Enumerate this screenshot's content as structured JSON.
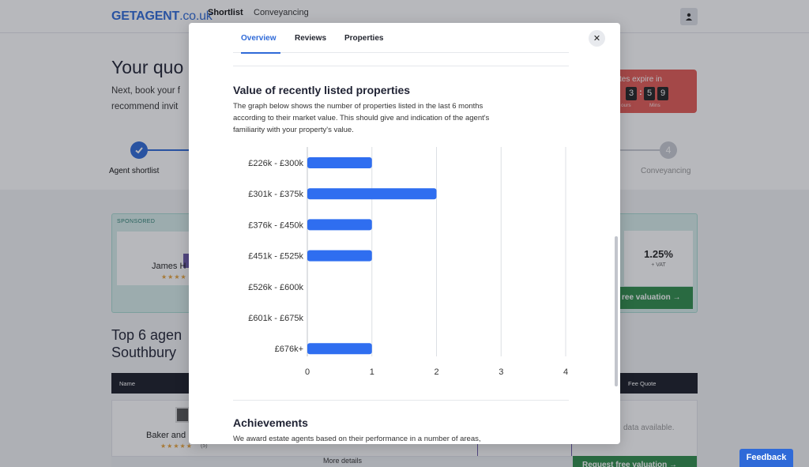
{
  "header": {
    "logo_bold": "GETAGENT",
    "logo_rest": ".co.uk",
    "nav": [
      "Shortlist",
      "Conveyancing"
    ]
  },
  "hero": {
    "title": "Your quo",
    "line1": "Next, book your f",
    "line2": "recommend invit",
    "timer_title": "tes expire in",
    "digits": [
      "3",
      "5",
      "9"
    ],
    "unit_hours": "ours",
    "unit_mins": "Mins"
  },
  "steps": {
    "first_label": "Agent shortlist",
    "last_number": "4",
    "last_label": "Conveyancing"
  },
  "sponsored": {
    "tag": "SPONSORED",
    "agent_name": "James H",
    "fee": "1.25%",
    "vat": "+ VAT",
    "cta": "ree valuation →"
  },
  "listing": {
    "title_line1": "Top 6 agen",
    "title_line2": "Southbury",
    "col_name": "Name",
    "col_fee": "Fee Quote",
    "agent_name": "Baker and",
    "rating_count": "(5)",
    "no_data": "data available.",
    "more_details": "More details",
    "cta": "Request free valuation →"
  },
  "feedback": "Feedback",
  "modal": {
    "tabs": [
      "Overview",
      "Reviews",
      "Properties"
    ],
    "active_tab": 0,
    "close_icon": "close-icon",
    "section_title": "Value of recently listed properties",
    "desc_lines": [
      "The graph below shows the number of properties listed in the last 6 months",
      "according to their market value. This should give and indication of the agent's",
      "familiarity with your property's value."
    ],
    "achievements_title": "Achievements",
    "achievements_text": "We award estate agents based on their performance in a number of areas,"
  },
  "colors": {
    "accent": "#2f6ad8",
    "bar": "#2f6ef0",
    "timer_bg": "#e35b55",
    "green": "#2e8c4a"
  },
  "chart_data": {
    "type": "bar",
    "orientation": "horizontal",
    "categories": [
      "£226k - £300k",
      "£301k - £375k",
      "£376k - £450k",
      "£451k - £525k",
      "£526k - £600k",
      "£601k - £675k",
      "£676k+"
    ],
    "values": [
      1,
      2,
      1,
      1,
      0,
      0,
      1
    ],
    "ticks": [
      0,
      1,
      2,
      3,
      4
    ],
    "xlim": [
      0,
      4
    ],
    "grid": true
  }
}
